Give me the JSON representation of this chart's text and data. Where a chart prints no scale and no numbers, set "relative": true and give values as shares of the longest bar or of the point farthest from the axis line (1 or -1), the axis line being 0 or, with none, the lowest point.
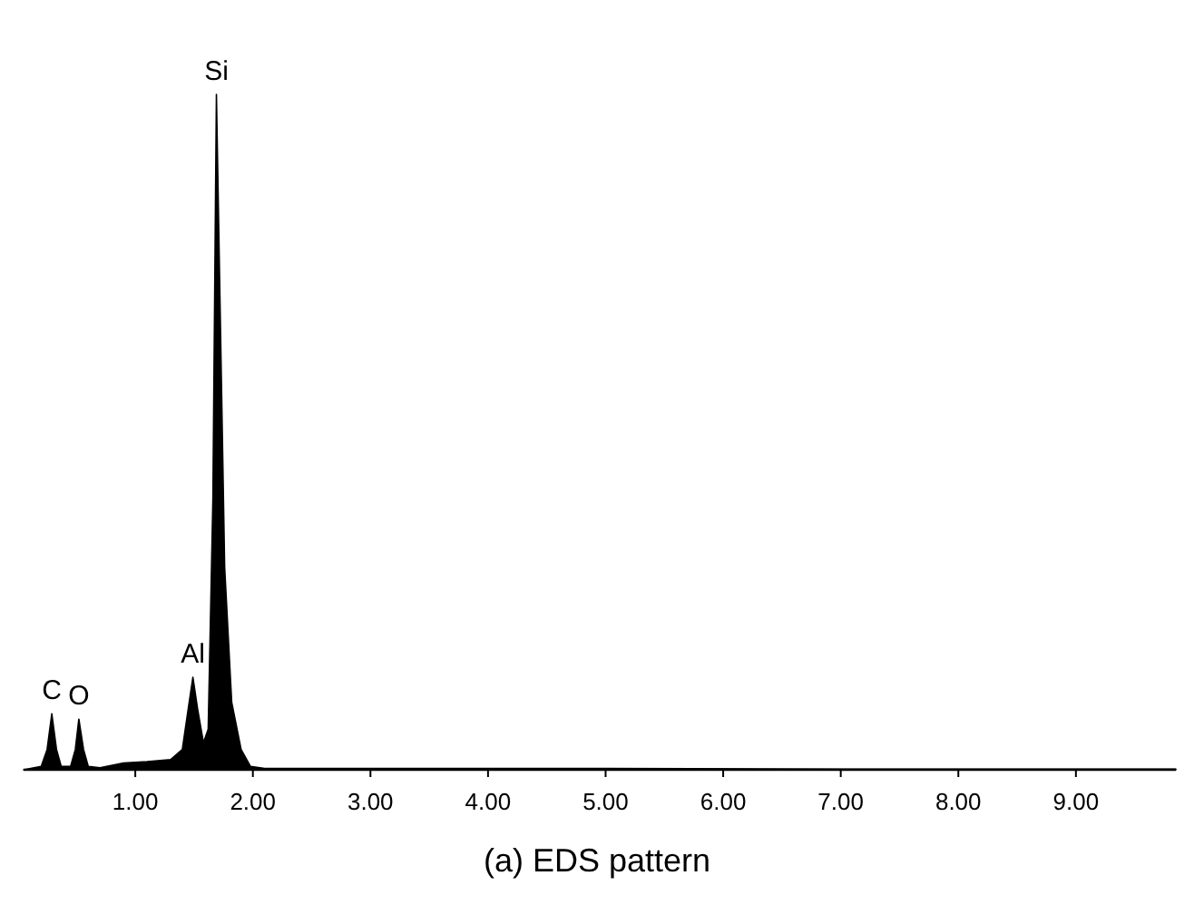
{
  "chart_data": {
    "type": "area",
    "title": "(a) EDS pattern",
    "relative": true,
    "x": [
      0.05,
      0.2,
      0.25,
      0.29,
      0.33,
      0.37,
      0.45,
      0.49,
      0.52,
      0.56,
      0.6,
      0.7,
      0.9,
      1.1,
      1.3,
      1.4,
      1.45,
      1.49,
      1.53,
      1.58,
      1.62,
      1.66,
      1.69,
      1.72,
      1.76,
      1.82,
      1.9,
      1.98,
      2.1,
      3,
      5,
      7,
      9.85
    ],
    "series": [
      {
        "color": "#000000",
        "values": [
          0,
          0.005,
          0.03,
          0.083,
          0.03,
          0.005,
          0.005,
          0.03,
          0.075,
          0.03,
          0.005,
          0.003,
          0.01,
          0.012,
          0.015,
          0.03,
          0.09,
          0.137,
          0.09,
          0.04,
          0.06,
          0.4,
          1,
          0.7,
          0.3,
          0.1,
          0.03,
          0.005,
          0.002,
          0.002,
          0.002,
          0.001,
          0.001
        ]
      }
    ],
    "xlim": [
      0.05,
      9.85
    ],
    "xticks": [
      {
        "value": 1,
        "label": "1.00"
      },
      {
        "value": 2,
        "label": "2.00"
      },
      {
        "value": 3,
        "label": "3.00"
      },
      {
        "value": 4,
        "label": "4.00"
      },
      {
        "value": 5,
        "label": "5.00"
      },
      {
        "value": 6,
        "label": "6.00"
      },
      {
        "value": 7,
        "label": "7.00"
      },
      {
        "value": 8,
        "label": "8.00"
      },
      {
        "value": 9,
        "label": "9.00"
      }
    ],
    "annotations": [
      {
        "text": "C",
        "x": 0.29,
        "y": 0.083
      },
      {
        "text": "O",
        "x": 0.52,
        "y": 0.075
      },
      {
        "text": "Al",
        "x": 1.49,
        "y": 0.137
      },
      {
        "text": "Si",
        "x": 1.69,
        "y": 1
      }
    ]
  }
}
